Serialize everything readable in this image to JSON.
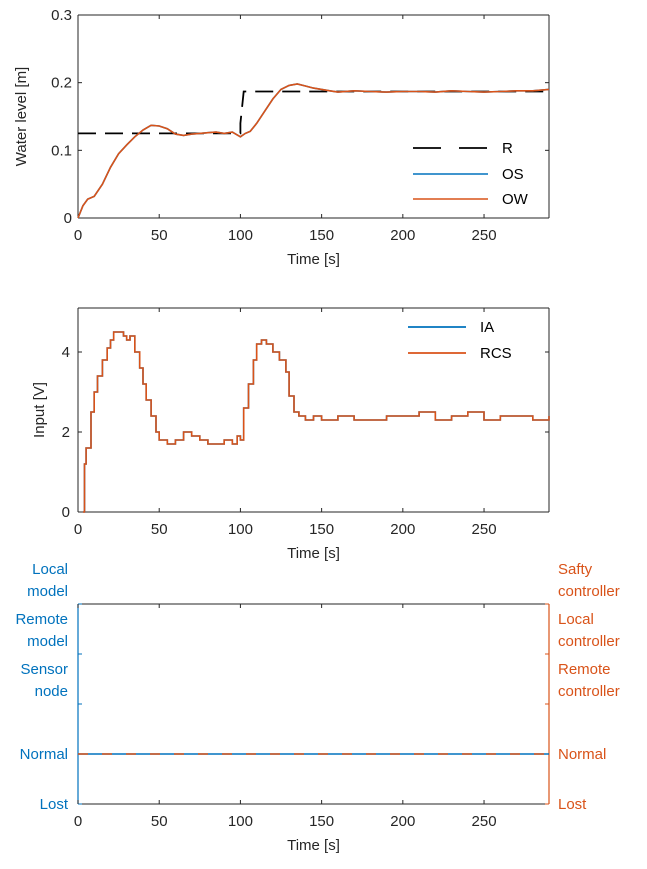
{
  "colors": {
    "R": "#000000",
    "OS": "#0072BD",
    "OW": "#D95319",
    "IA": "#0072BD",
    "RCS": "#D95319",
    "axis": "#262626"
  },
  "chart_data": [
    {
      "type": "line",
      "xlabel": "Time [s]",
      "ylabel": "Water level [m]",
      "xlim": [
        0,
        290
      ],
      "ylim": [
        0,
        0.3
      ],
      "xticks": [
        0,
        50,
        100,
        150,
        200,
        250
      ],
      "yticks": [
        0,
        0.1,
        0.2,
        0.3
      ],
      "xtick_labels": [
        "0",
        "50",
        "100",
        "150",
        "200",
        "250"
      ],
      "ytick_labels": [
        "0",
        "0.1",
        "0.2",
        "0.3"
      ],
      "legend_position": "bottom-right",
      "series": [
        {
          "name": "R",
          "style": "dashed",
          "x": [
            0,
            100,
            100,
            102,
            290
          ],
          "y": [
            0.125,
            0.125,
            0.14,
            0.187,
            0.187
          ]
        },
        {
          "name": "OS",
          "style": "solid",
          "x": [
            0,
            3,
            6,
            10,
            15,
            20,
            25,
            30,
            35,
            40,
            45,
            50,
            55,
            60,
            65,
            70,
            75,
            80,
            85,
            90,
            95,
            100,
            103,
            106,
            110,
            115,
            120,
            125,
            130,
            135,
            140,
            145,
            150,
            155,
            160,
            170,
            180,
            190,
            200,
            210,
            220,
            230,
            240,
            250,
            260,
            270,
            280,
            290
          ],
          "y": [
            0.0,
            0.018,
            0.028,
            0.032,
            0.05,
            0.075,
            0.095,
            0.108,
            0.12,
            0.13,
            0.137,
            0.136,
            0.132,
            0.124,
            0.122,
            0.124,
            0.125,
            0.126,
            0.127,
            0.125,
            0.127,
            0.12,
            0.125,
            0.128,
            0.14,
            0.158,
            0.176,
            0.19,
            0.196,
            0.198,
            0.195,
            0.192,
            0.19,
            0.188,
            0.186,
            0.188,
            0.187,
            0.186,
            0.187,
            0.187,
            0.186,
            0.188,
            0.187,
            0.186,
            0.187,
            0.188,
            0.188,
            0.19
          ]
        },
        {
          "name": "OW",
          "style": "solid",
          "x": [
            0,
            3,
            6,
            10,
            15,
            20,
            25,
            30,
            35,
            40,
            45,
            50,
            55,
            60,
            65,
            70,
            75,
            80,
            85,
            90,
            95,
            100,
            103,
            106,
            110,
            115,
            120,
            125,
            130,
            135,
            140,
            145,
            150,
            155,
            160,
            170,
            180,
            190,
            200,
            210,
            220,
            230,
            240,
            250,
            260,
            270,
            280,
            290
          ],
          "y": [
            0.0,
            0.018,
            0.028,
            0.032,
            0.05,
            0.075,
            0.095,
            0.108,
            0.12,
            0.13,
            0.137,
            0.136,
            0.132,
            0.124,
            0.122,
            0.124,
            0.125,
            0.126,
            0.127,
            0.125,
            0.127,
            0.12,
            0.125,
            0.128,
            0.14,
            0.158,
            0.176,
            0.19,
            0.196,
            0.198,
            0.195,
            0.192,
            0.19,
            0.188,
            0.186,
            0.188,
            0.187,
            0.186,
            0.187,
            0.187,
            0.186,
            0.188,
            0.187,
            0.186,
            0.187,
            0.188,
            0.188,
            0.19
          ]
        }
      ]
    },
    {
      "type": "line",
      "xlabel": "Time [s]",
      "ylabel": "Input [V]",
      "xlim": [
        0,
        290
      ],
      "ylim": [
        0,
        5.1
      ],
      "xticks": [
        0,
        50,
        100,
        150,
        200,
        250
      ],
      "yticks": [
        0,
        2,
        4
      ],
      "xtick_labels": [
        "0",
        "50",
        "100",
        "150",
        "200",
        "250"
      ],
      "ytick_labels": [
        "0",
        "2",
        "4"
      ],
      "legend_position": "top-right",
      "step": true,
      "series": [
        {
          "name": "IA",
          "x": [
            3,
            4,
            5,
            8,
            10,
            12,
            15,
            18,
            20,
            22,
            25,
            28,
            30,
            32,
            35,
            38,
            40,
            42,
            45,
            48,
            50,
            55,
            60,
            65,
            70,
            75,
            80,
            85,
            90,
            95,
            98,
            100,
            102,
            105,
            108,
            110,
            113,
            116,
            120,
            124,
            128,
            130,
            133,
            136,
            140,
            145,
            150,
            160,
            170,
            180,
            190,
            200,
            210,
            220,
            230,
            240,
            250,
            260,
            270,
            280,
            290
          ],
          "y": [
            0,
            1.2,
            1.6,
            2.5,
            3.0,
            3.4,
            3.8,
            4.1,
            4.3,
            4.5,
            4.5,
            4.4,
            4.3,
            4.4,
            4.0,
            3.6,
            3.2,
            2.8,
            2.4,
            2.0,
            1.8,
            1.7,
            1.8,
            2.0,
            1.9,
            1.8,
            1.7,
            1.7,
            1.8,
            1.7,
            1.9,
            1.8,
            2.6,
            3.2,
            3.8,
            4.2,
            4.3,
            4.2,
            4.0,
            3.8,
            3.5,
            2.9,
            2.5,
            2.4,
            2.3,
            2.4,
            2.3,
            2.4,
            2.3,
            2.3,
            2.4,
            2.4,
            2.5,
            2.3,
            2.4,
            2.5,
            2.3,
            2.4,
            2.4,
            2.3,
            2.4
          ]
        },
        {
          "name": "RCS",
          "x": [
            3,
            4,
            5,
            8,
            10,
            12,
            15,
            18,
            20,
            22,
            25,
            28,
            30,
            32,
            35,
            38,
            40,
            42,
            45,
            48,
            50,
            55,
            60,
            65,
            70,
            75,
            80,
            85,
            90,
            95,
            98,
            100,
            102,
            105,
            108,
            110,
            113,
            116,
            120,
            124,
            128,
            130,
            133,
            136,
            140,
            145,
            150,
            160,
            170,
            180,
            190,
            200,
            210,
            220,
            230,
            240,
            250,
            260,
            270,
            280,
            290
          ],
          "y": [
            0,
            1.2,
            1.6,
            2.5,
            3.0,
            3.4,
            3.8,
            4.1,
            4.3,
            4.5,
            4.5,
            4.4,
            4.3,
            4.4,
            4.0,
            3.6,
            3.2,
            2.8,
            2.4,
            2.0,
            1.8,
            1.7,
            1.8,
            2.0,
            1.9,
            1.8,
            1.7,
            1.7,
            1.8,
            1.7,
            1.9,
            1.8,
            2.6,
            3.2,
            3.8,
            4.2,
            4.3,
            4.2,
            4.0,
            3.8,
            3.5,
            2.9,
            2.5,
            2.4,
            2.3,
            2.4,
            2.3,
            2.4,
            2.3,
            2.3,
            2.4,
            2.4,
            2.5,
            2.3,
            2.4,
            2.5,
            2.3,
            2.4,
            2.4,
            2.3,
            2.4
          ]
        }
      ]
    },
    {
      "type": "line",
      "xlabel": "Time [s]",
      "xlim": [
        0,
        290
      ],
      "ylim": [
        0,
        4
      ],
      "xticks": [
        0,
        50,
        100,
        150,
        200,
        250
      ],
      "xtick_labels": [
        "0",
        "50",
        "100",
        "150",
        "200",
        "250"
      ],
      "yticks_left": [
        {
          "value": 0,
          "lines": [
            "Lost"
          ]
        },
        {
          "value": 1,
          "lines": [
            "Normal"
          ]
        },
        {
          "value": 2,
          "lines": [
            "Sensor",
            "node"
          ]
        },
        {
          "value": 3,
          "lines": [
            "Remote",
            "model"
          ]
        },
        {
          "value": 4,
          "lines": [
            "Local",
            "model"
          ]
        }
      ],
      "yticks_right": [
        {
          "value": 0,
          "lines": [
            "Lost"
          ]
        },
        {
          "value": 1,
          "lines": [
            "Normal"
          ]
        },
        {
          "value": 2,
          "lines": [
            "Remote",
            "controller"
          ]
        },
        {
          "value": 3,
          "lines": [
            "Local",
            "controller"
          ]
        },
        {
          "value": 4,
          "lines": [
            "Safty",
            "controller"
          ]
        }
      ],
      "series": [
        {
          "x": [
            0,
            290
          ],
          "y": [
            1,
            1
          ],
          "axis": "left",
          "style": "solid"
        },
        {
          "x": [
            0,
            290
          ],
          "y": [
            1,
            1
          ],
          "axis": "right",
          "style": "dashed"
        }
      ]
    }
  ]
}
